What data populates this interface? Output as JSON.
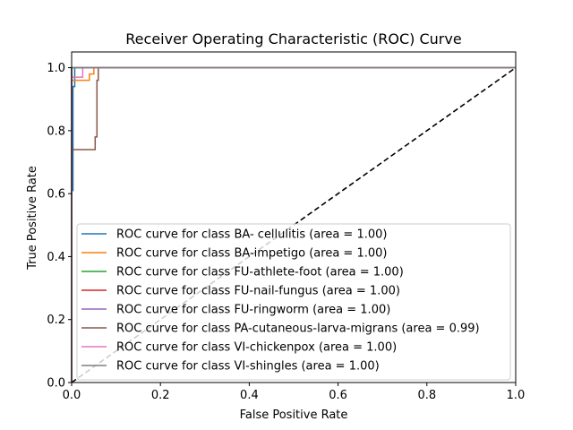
{
  "chart_data": {
    "type": "line",
    "title": "Receiver Operating Characteristic (ROC) Curve",
    "xlabel": "False Positive Rate",
    "ylabel": "True Positive Rate",
    "xlim": [
      0,
      1
    ],
    "ylim": [
      0,
      1.05
    ],
    "xticks": [
      "0.0",
      "0.2",
      "0.4",
      "0.6",
      "0.8",
      "1.0"
    ],
    "yticks": [
      "0.0",
      "0.2",
      "0.4",
      "0.6",
      "0.8",
      "1.0"
    ],
    "grid": false,
    "legend_position": "lower-right",
    "reference_line": {
      "x": [
        0,
        1
      ],
      "y": [
        0,
        1
      ],
      "style": "dashed",
      "color": "#000000"
    },
    "series": [
      {
        "name": "ROC curve for class BA- cellulitis (area = 1.00)",
        "color": "#1f77b4",
        "x": [
          0,
          0,
          0.003,
          0.003,
          0.007,
          0.007,
          1
        ],
        "y": [
          0,
          0.61,
          0.61,
          0.94,
          0.94,
          1.0,
          1.0
        ]
      },
      {
        "name": "ROC curve for class BA-impetigo (area = 1.00)",
        "color": "#ff7f0e",
        "x": [
          0,
          0,
          0.04,
          0.04,
          0.05,
          0.05,
          1
        ],
        "y": [
          0,
          0.96,
          0.96,
          0.98,
          0.98,
          1.0,
          1.0
        ]
      },
      {
        "name": "ROC curve for class FU-athlete-foot (area = 1.00)",
        "color": "#2ca02c",
        "x": [
          0,
          0,
          1
        ],
        "y": [
          0,
          1.0,
          1.0
        ]
      },
      {
        "name": "ROC curve for class FU-nail-fungus (area = 1.00)",
        "color": "#d62728",
        "x": [
          0,
          0,
          1
        ],
        "y": [
          0,
          1.0,
          1.0
        ]
      },
      {
        "name": "ROC curve for class FU-ringworm (area = 1.00)",
        "color": "#9467bd",
        "x": [
          0,
          0,
          1
        ],
        "y": [
          0,
          1.0,
          1.0
        ]
      },
      {
        "name": "ROC curve for class PA-cutaneous-larva-migrans (area = 0.99)",
        "color": "#8c564b",
        "x": [
          0,
          0,
          0.053,
          0.053,
          0.057,
          0.057,
          0.06,
          0.06,
          1
        ],
        "y": [
          0,
          0.74,
          0.74,
          0.78,
          0.78,
          0.96,
          0.96,
          1.0,
          1.0
        ]
      },
      {
        "name": "ROC curve for class VI-chickenpox (area = 1.00)",
        "color": "#e377c2",
        "x": [
          0,
          0,
          0.025,
          0.025,
          1
        ],
        "y": [
          0,
          0.97,
          0.97,
          1.0,
          1.0
        ]
      },
      {
        "name": "ROC curve for class VI-shingles (area = 1.00)",
        "color": "#7f7f7f",
        "x": [
          0,
          0,
          1
        ],
        "y": [
          0,
          1.0,
          1.0
        ]
      }
    ]
  }
}
